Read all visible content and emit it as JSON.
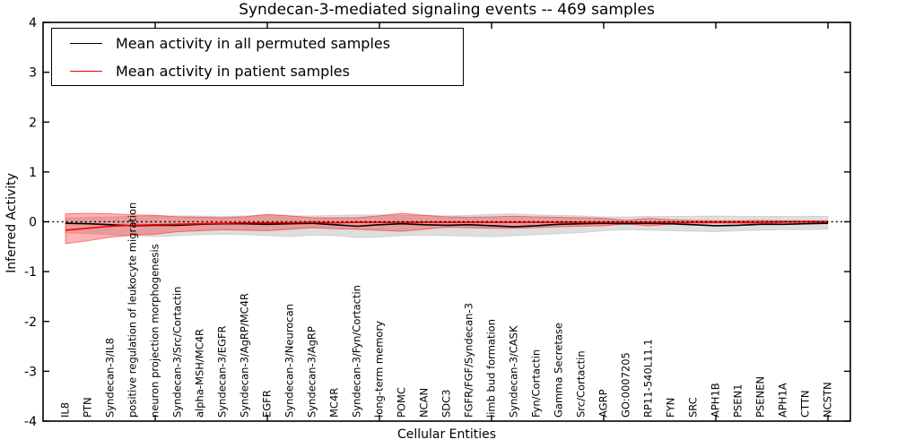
{
  "chart_data": {
    "type": "line",
    "title": "Syndecan-3-mediated signaling events -- 469 samples",
    "xlabel": "Cellular Entities",
    "ylabel": "Inferred Activity",
    "ylim": [
      -4,
      4
    ],
    "yticks": [
      4,
      3,
      2,
      1,
      0,
      -1,
      -2,
      -3,
      -4
    ],
    "grid": false,
    "legend_position": "upper left",
    "zero_line": {
      "y": 0,
      "style": "dotted",
      "color": "#000000"
    },
    "categories": [
      "IL8",
      "PTN",
      "Syndecan-3/IL8",
      "positive regulation of leukocyte migration",
      "neuron projection morphogenesis",
      "Syndecan-3/Src/Cortactin",
      "alpha-MSH/MC4R",
      "Syndecan-3/EGFR",
      "Syndecan-3/AgRP/MC4R",
      "EGFR",
      "Syndecan-3/Neurocan",
      "Syndecan-3/AgRP",
      "MC4R",
      "Syndecan-3/Fyn/Cortactin",
      "long-term memory",
      "POMC",
      "NCAN",
      "SDC3",
      "FGFR/FGF/Syndecan-3",
      "limb bud formation",
      "Syndecan-3/CASK",
      "Fyn/Cortactin",
      "Gamma Secretase",
      "Src/Cortactin",
      "AGRP",
      "GO:0007205",
      "RP11-540L11.1",
      "FYN",
      "SRC",
      "APH1B",
      "PSEN1",
      "PSENEN",
      "APH1A",
      "CTTN",
      "NCSTN"
    ],
    "series": [
      {
        "name": "Mean activity in all permuted samples",
        "color": "#000000",
        "band_fill": "rgba(0,0,0,0.13)",
        "band_edge": "rgba(0,0,0,0.10)",
        "values": [
          -0.03,
          -0.04,
          -0.06,
          -0.08,
          -0.07,
          -0.07,
          -0.05,
          -0.04,
          -0.04,
          -0.05,
          -0.04,
          -0.03,
          -0.06,
          -0.09,
          -0.06,
          -0.04,
          -0.06,
          -0.07,
          -0.06,
          -0.08,
          -0.1,
          -0.08,
          -0.05,
          -0.04,
          -0.03,
          -0.04,
          -0.03,
          -0.04,
          -0.06,
          -0.08,
          -0.07,
          -0.05,
          -0.05,
          -0.04,
          -0.03
        ],
        "band_upper": [
          0.08,
          0.09,
          0.1,
          0.11,
          0.12,
          0.12,
          0.12,
          0.11,
          0.12,
          0.13,
          0.12,
          0.12,
          0.13,
          0.14,
          0.14,
          0.13,
          0.13,
          0.12,
          0.13,
          0.15,
          0.16,
          0.14,
          0.13,
          0.12,
          0.1,
          0.1,
          0.11,
          0.11,
          0.11,
          0.12,
          0.11,
          0.11,
          0.11,
          0.11,
          0.11
        ],
        "band_lower": [
          -0.22,
          -0.24,
          -0.26,
          -0.28,
          -0.3,
          -0.28,
          -0.26,
          -0.25,
          -0.26,
          -0.28,
          -0.3,
          -0.27,
          -0.28,
          -0.32,
          -0.31,
          -0.28,
          -0.27,
          -0.28,
          -0.29,
          -0.3,
          -0.28,
          -0.26,
          -0.24,
          -0.22,
          -0.18,
          -0.16,
          -0.17,
          -0.18,
          -0.19,
          -0.2,
          -0.18,
          -0.17,
          -0.16,
          -0.16,
          -0.15
        ]
      },
      {
        "name": "Mean activity in patient samples",
        "color": "#ff0000",
        "band_fill": "rgba(255,0,0,0.30)",
        "band_edge": "rgba(255,0,0,0.45)",
        "values": [
          -0.17,
          -0.13,
          -0.09,
          -0.07,
          -0.06,
          -0.05,
          -0.04,
          -0.03,
          -0.02,
          -0.02,
          -0.02,
          -0.01,
          -0.02,
          -0.01,
          -0.01,
          -0.01,
          -0.01,
          -0.01,
          -0.01,
          -0.01,
          -0.01,
          -0.01,
          -0.01,
          -0.01,
          -0.01,
          -0.01,
          -0.01,
          -0.01,
          -0.01,
          -0.01,
          -0.01,
          -0.01,
          0.0,
          0.0,
          0.0
        ],
        "band_upper": [
          0.16,
          0.17,
          0.16,
          0.14,
          0.13,
          0.1,
          0.09,
          0.08,
          0.1,
          0.15,
          0.12,
          0.08,
          0.08,
          0.08,
          0.12,
          0.17,
          0.13,
          0.1,
          0.09,
          0.1,
          0.11,
          0.1,
          0.09,
          0.08,
          0.07,
          0.03,
          0.07,
          0.04,
          0.03,
          0.02,
          0.02,
          0.03,
          0.02,
          0.02,
          0.02
        ],
        "band_lower": [
          -0.44,
          -0.38,
          -0.31,
          -0.27,
          -0.25,
          -0.2,
          -0.18,
          -0.16,
          -0.17,
          -0.18,
          -0.15,
          -0.12,
          -0.14,
          -0.15,
          -0.17,
          -0.19,
          -0.15,
          -0.11,
          -0.12,
          -0.13,
          -0.13,
          -0.12,
          -0.1,
          -0.09,
          -0.08,
          -0.04,
          -0.08,
          -0.05,
          -0.03,
          -0.03,
          -0.03,
          -0.04,
          -0.02,
          -0.02,
          -0.02
        ]
      }
    ]
  }
}
